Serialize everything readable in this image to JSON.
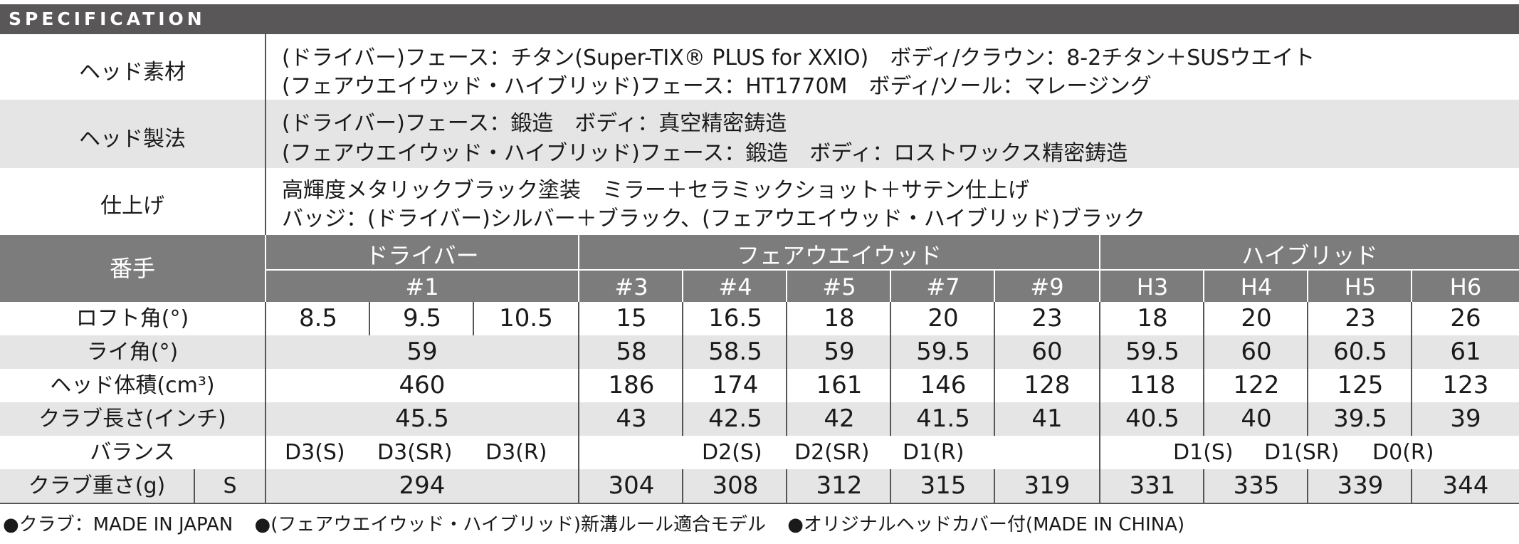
{
  "section_title": "SPECIFICATION",
  "materials": {
    "label": "ヘッド素材",
    "line1": "(ドライバー)フェース：チタン(Super-TIX® PLUS for XXIO)　ボディ/クラウン：8-2チタン＋SUSウエイト",
    "line2": "(フェアウエイウッド・ハイブリッド)フェース：HT1770M　ボディ/ソール：マレージング"
  },
  "method": {
    "label": "ヘッド製法",
    "line1": "(ドライバー)フェース：鍛造　ボディ：真空精密鋳造",
    "line2": "(フェアウエイウッド・ハイブリッド)フェース：鍛造　ボディ：ロストワックス精密鋳造"
  },
  "finish": {
    "label": "仕上げ",
    "line1": "高輝度メタリックブラック塗装　ミラー＋セラミックショット＋サテン仕上げ",
    "line2": "バッジ：(ドライバー)シルバー＋ブラック、(フェアウエイウッド・ハイブリッド)ブラック"
  },
  "table": {
    "number_label": "番手",
    "groups": [
      "ドライバー",
      "フェアウエイウッド",
      "ハイブリッド"
    ],
    "clubs": [
      "#1",
      "#3",
      "#4",
      "#5",
      "#7",
      "#9",
      "H3",
      "H4",
      "H5",
      "H6"
    ],
    "loft": {
      "label": "ロフト角(°)",
      "values": [
        "8.5",
        "9.5",
        "10.5",
        "15",
        "16.5",
        "18",
        "20",
        "23",
        "18",
        "20",
        "23",
        "26"
      ]
    },
    "lie": {
      "label": "ライ角(°)",
      "values": [
        "59",
        "58",
        "58.5",
        "59",
        "59.5",
        "60",
        "59.5",
        "60",
        "60.5",
        "61"
      ]
    },
    "volume": {
      "label": "ヘッド体積(cm³)",
      "values": [
        "460",
        "186",
        "174",
        "161",
        "146",
        "128",
        "118",
        "122",
        "125",
        "123"
      ]
    },
    "length": {
      "label": "クラブ長さ(インチ)",
      "values": [
        "45.5",
        "43",
        "42.5",
        "42",
        "41.5",
        "41",
        "40.5",
        "40",
        "39.5",
        "39"
      ]
    },
    "balance": {
      "label": "バランス",
      "driver": [
        "D3(S)",
        "D3(SR)",
        "D3(R)"
      ],
      "fairway": [
        "D2(S)",
        "D2(SR)",
        "D1(R)"
      ],
      "hybrid": [
        "D1(S)",
        "D1(SR)",
        "D0(R)"
      ]
    },
    "weight": {
      "label": "クラブ重さ(g)",
      "flex": "S",
      "values": [
        "294",
        "304",
        "308",
        "312",
        "315",
        "319",
        "331",
        "335",
        "339",
        "344"
      ]
    }
  },
  "footer": {
    "note1": "●クラブ：MADE IN JAPAN",
    "note2": "●(フェアウエイウッド・ハイブリッド)新溝ルール適合モデル",
    "note3": "●オリジナルヘッドカバー付(MADE IN CHINA)"
  },
  "colors": {
    "header_dark": "#595758",
    "header_gray": "#7c7c7c",
    "row_gray": "#e5e5e5"
  }
}
